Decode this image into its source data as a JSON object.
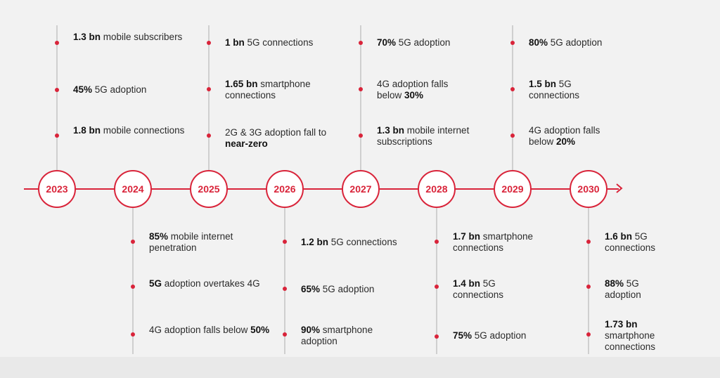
{
  "timeline": {
    "years": [
      "2023",
      "2024",
      "2025",
      "2026",
      "2027",
      "2028",
      "2029",
      "2030"
    ],
    "facts": {
      "2023": [
        {
          "bold": "1.3 bn",
          "text": " mobile subscribers"
        },
        {
          "bold": "45%",
          "text": " 5G adoption"
        },
        {
          "bold": "1.8 bn",
          "text": " mobile connections"
        }
      ],
      "2024": [
        {
          "bold": "85%",
          "text": " mobile internet penetration"
        },
        {
          "bold": "5G",
          "text": " adoption overtakes 4G"
        },
        {
          "pre": "4G adoption falls below ",
          "bold": "50%",
          "text": ""
        }
      ],
      "2025": [
        {
          "bold": "1 bn",
          "text": " 5G connections"
        },
        {
          "bold": "1.65 bn",
          "text": " smartphone connections"
        },
        {
          "pre": "2G & 3G adoption fall to ",
          "bold": "near-zero",
          "text": ""
        }
      ],
      "2026": [
        {
          "bold": "1.2 bn",
          "text": " 5G connections"
        },
        {
          "bold": "65%",
          "text": " 5G adoption"
        },
        {
          "bold": "90%",
          "text": " smartphone adoption"
        }
      ],
      "2027": [
        {
          "bold": "70%",
          "text": " 5G adoption"
        },
        {
          "pre": "4G adoption falls below ",
          "bold": "30%",
          "text": ""
        },
        {
          "bold": "1.3 bn",
          "text": " mobile internet subscriptions"
        }
      ],
      "2028": [
        {
          "bold": "1.7 bn",
          "text": " smartphone connections"
        },
        {
          "bold": "1.4 bn",
          "text": " 5G connections"
        },
        {
          "bold": "75%",
          "text": " 5G adoption"
        }
      ],
      "2029": [
        {
          "bold": "80%",
          "text": " 5G adoption"
        },
        {
          "bold": "1.5 bn",
          "text": " 5G connections"
        },
        {
          "pre": "4G adoption falls below ",
          "bold": "20%",
          "text": ""
        }
      ],
      "2030": [
        {
          "bold": "1.6 bn",
          "text": " 5G connections"
        },
        {
          "bold": "88%",
          "text": " 5G adoption"
        },
        {
          "bold": "1.73 bn",
          "text": " smartphone connections"
        }
      ]
    }
  },
  "colors": {
    "accent": "#d9243a",
    "background": "#f2f2f2"
  }
}
